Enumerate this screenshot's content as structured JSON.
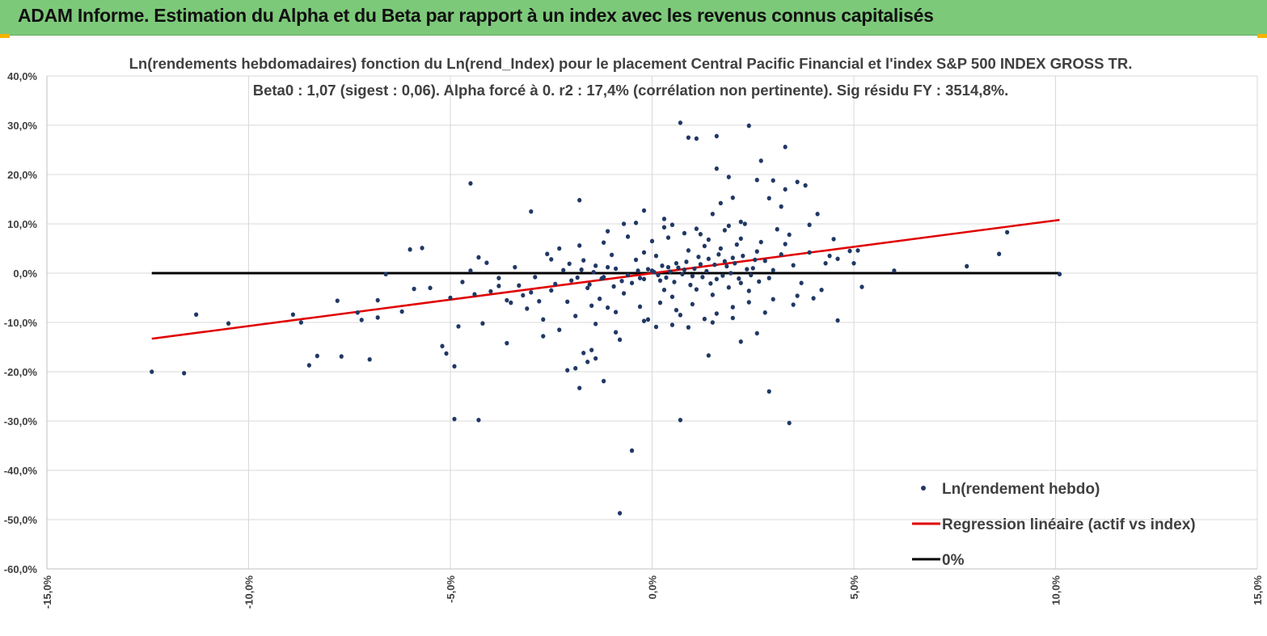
{
  "banner": {
    "title": "ADAM Informe. Estimation du Alpha et du Beta par rapport à un index avec les revenus connus capitalisés"
  },
  "colors": {
    "banner": "#7dc97a",
    "points": "#203864",
    "regression": "#e00000",
    "zero_line": "#000000",
    "grid": "#d9d9d9"
  },
  "chart_data": {
    "type": "scatter",
    "title": "Ln(rendements hebdomadaires) fonction du Ln(rend_Index) pour le placement Central Pacific Financial et l'index S&P 500 INDEX GROSS TR.",
    "subtitle": "Beta0 : 1,07 (sigest : 0,06). Alpha forcé à 0. r2 : 17,4% (corrélation non pertinente). Sig résidu FY : 3514,8%.",
    "xlabel": "",
    "ylabel": "",
    "xlim": [
      -15,
      15
    ],
    "ylim": [
      -60,
      40
    ],
    "x_ticks": [
      -15,
      -10,
      -5,
      0,
      5,
      10,
      15
    ],
    "y_ticks": [
      40,
      30,
      20,
      10,
      0,
      -10,
      -20,
      -30,
      -40,
      -50,
      -60
    ],
    "x_tick_labels": [
      "-15,0%",
      "-10,0%",
      "-5,0%",
      "0,0%",
      "5,0%",
      "10,0%",
      "15,0%"
    ],
    "y_tick_labels": [
      "40,0%",
      "30,0%",
      "20,0%",
      "10,0%",
      "0,0%",
      "-10,0%",
      "-20,0%",
      "-30,0%",
      "-40,0%",
      "-50,0%",
      "-60,0%"
    ],
    "grid": true,
    "legend_position": "bottom-right",
    "series": [
      {
        "name": "Ln(rendement hebdo)",
        "kind": "scatter",
        "points": [
          [
            -12.4,
            -20.0
          ],
          [
            -11.6,
            -20.3
          ],
          [
            -11.3,
            -8.4
          ],
          [
            -10.5,
            -10.2
          ],
          [
            -8.9,
            -8.4
          ],
          [
            -8.7,
            -10.0
          ],
          [
            -8.5,
            -18.7
          ],
          [
            -8.3,
            -16.8
          ],
          [
            -7.8,
            -5.6
          ],
          [
            -7.7,
            -16.9
          ],
          [
            -7.3,
            -8.0
          ],
          [
            -7.2,
            -9.5
          ],
          [
            -7.0,
            -17.5
          ],
          [
            -6.8,
            -5.5
          ],
          [
            -6.8,
            -9.0
          ],
          [
            -6.6,
            -0.2
          ],
          [
            -6.2,
            -7.8
          ],
          [
            -6.0,
            4.8
          ],
          [
            -5.9,
            -3.2
          ],
          [
            -5.7,
            5.1
          ],
          [
            -5.5,
            -3.0
          ],
          [
            -5.2,
            -14.8
          ],
          [
            -5.1,
            -16.3
          ],
          [
            -5.0,
            -5.0
          ],
          [
            -4.9,
            -18.9
          ],
          [
            -4.9,
            -29.6
          ],
          [
            -4.8,
            -10.8
          ],
          [
            -4.7,
            -1.8
          ],
          [
            -4.5,
            18.2
          ],
          [
            -4.5,
            0.5
          ],
          [
            -4.3,
            -29.8
          ],
          [
            -4.3,
            3.2
          ],
          [
            -4.2,
            -10.2
          ],
          [
            -4.0,
            -3.7
          ],
          [
            -3.8,
            -1.0
          ],
          [
            -3.6,
            -14.2
          ],
          [
            -3.5,
            -6.0
          ],
          [
            -3.3,
            -2.5
          ],
          [
            -3.0,
            12.5
          ],
          [
            -3.2,
            -4.5
          ],
          [
            -2.8,
            -5.7
          ],
          [
            -2.7,
            -12.8
          ],
          [
            -2.5,
            -3.5
          ],
          [
            -2.3,
            5.0
          ],
          [
            -2.1,
            -19.7
          ],
          [
            -1.8,
            14.8
          ],
          [
            -1.9,
            -19.3
          ],
          [
            -1.8,
            -23.3
          ],
          [
            -1.7,
            -16.2
          ],
          [
            -1.6,
            -18.0
          ],
          [
            -1.5,
            -15.6
          ],
          [
            -1.4,
            -17.3
          ],
          [
            -1.2,
            -21.9
          ],
          [
            -1.1,
            -7.0
          ],
          [
            -0.8,
            -13.5
          ],
          [
            -0.7,
            10.0
          ],
          [
            -0.5,
            -36.0
          ],
          [
            -0.8,
            -48.7
          ],
          [
            -0.2,
            12.7
          ],
          [
            -0.1,
            -9.4
          ],
          [
            0.3,
            9.3
          ],
          [
            0.7,
            30.5
          ],
          [
            0.9,
            27.5
          ],
          [
            1.1,
            27.3
          ],
          [
            1.4,
            -16.7
          ],
          [
            1.6,
            21.2
          ],
          [
            1.7,
            14.2
          ],
          [
            1.5,
            12.0
          ],
          [
            1.6,
            27.8
          ],
          [
            1.9,
            19.5
          ],
          [
            2.0,
            15.3
          ],
          [
            2.3,
            10.0
          ],
          [
            2.6,
            18.9
          ],
          [
            2.9,
            15.2
          ],
          [
            2.2,
            -13.9
          ],
          [
            2.7,
            22.8
          ],
          [
            2.9,
            -24.0
          ],
          [
            3.0,
            18.8
          ],
          [
            3.2,
            13.5
          ],
          [
            3.3,
            17.0
          ],
          [
            3.3,
            25.6
          ],
          [
            3.4,
            -30.4
          ],
          [
            3.6,
            18.5
          ],
          [
            3.7,
            -2.0
          ],
          [
            3.8,
            17.8
          ],
          [
            3.9,
            9.8
          ],
          [
            4.1,
            12.0
          ],
          [
            4.3,
            2.0
          ],
          [
            4.5,
            6.9
          ],
          [
            4.6,
            -9.6
          ],
          [
            4.6,
            2.9
          ],
          [
            4.9,
            4.5
          ],
          [
            5.0,
            2.0
          ],
          [
            5.1,
            4.6
          ],
          [
            5.2,
            -2.8
          ],
          [
            6.0,
            0.5
          ],
          [
            7.8,
            1.4
          ],
          [
            8.6,
            3.9
          ],
          [
            8.8,
            8.3
          ],
          [
            10.1,
            -0.2
          ],
          [
            2.4,
            29.9
          ],
          [
            0.7,
            -29.8
          ],
          [
            2.6,
            -12.2
          ],
          [
            0.9,
            -11.0
          ],
          [
            0.5,
            -10.5
          ],
          [
            -0.3,
            -1.0
          ],
          [
            0.0,
            0.5
          ],
          [
            0.2,
            -1.5
          ],
          [
            0.4,
            1.2
          ],
          [
            0.6,
            2.0
          ],
          [
            -0.5,
            -2.0
          ],
          [
            0.8,
            0.7
          ],
          [
            1.0,
            -0.6
          ],
          [
            1.2,
            1.8
          ],
          [
            -0.9,
            0.9
          ],
          [
            1.4,
            2.9
          ],
          [
            -1.2,
            -0.8
          ],
          [
            1.6,
            -1.2
          ],
          [
            1.8,
            2.4
          ],
          [
            -1.4,
            1.5
          ],
          [
            2.0,
            3.1
          ],
          [
            2.2,
            -2.0
          ],
          [
            -1.6,
            -3.0
          ],
          [
            2.5,
            1.0
          ],
          [
            2.8,
            2.5
          ],
          [
            -2.0,
            -1.5
          ],
          [
            3.0,
            0.6
          ],
          [
            3.2,
            3.8
          ],
          [
            -2.4,
            -2.2
          ],
          [
            3.5,
            1.6
          ],
          [
            0.1,
            3.5
          ],
          [
            0.3,
            -3.4
          ],
          [
            -0.2,
            4.2
          ],
          [
            0.5,
            -4.8
          ],
          [
            -0.4,
            2.7
          ],
          [
            0.9,
            4.6
          ],
          [
            -0.7,
            -4.1
          ],
          [
            1.1,
            -3.3
          ],
          [
            1.3,
            5.5
          ],
          [
            -1.0,
            3.7
          ],
          [
            1.5,
            -4.4
          ],
          [
            1.7,
            5.0
          ],
          [
            -1.3,
            -5.2
          ],
          [
            1.9,
            -2.9
          ],
          [
            2.1,
            5.8
          ],
          [
            -1.7,
            2.6
          ],
          [
            2.4,
            -3.6
          ],
          [
            2.6,
            4.4
          ],
          [
            -2.2,
            0.6
          ],
          [
            2.9,
            -1.0
          ],
          [
            0.05,
            0.2
          ],
          [
            0.15,
            -0.4
          ],
          [
            -0.1,
            0.8
          ],
          [
            0.25,
            1.5
          ],
          [
            -0.2,
            -1.2
          ],
          [
            0.35,
            -0.9
          ],
          [
            0.45,
            0.3
          ],
          [
            -0.35,
            0.5
          ],
          [
            0.55,
            -1.8
          ],
          [
            0.65,
            1.1
          ],
          [
            -0.6,
            -0.4
          ],
          [
            0.75,
            -0.2
          ],
          [
            0.85,
            2.3
          ],
          [
            -0.75,
            -1.6
          ],
          [
            0.95,
            -2.4
          ],
          [
            1.05,
            0.9
          ],
          [
            -0.95,
            -2.7
          ],
          [
            1.15,
            3.3
          ],
          [
            1.25,
            -0.8
          ],
          [
            -1.1,
            1.2
          ],
          [
            1.35,
            0.4
          ],
          [
            1.45,
            -2.1
          ],
          [
            -1.25,
            -1.1
          ],
          [
            1.55,
            1.7
          ],
          [
            1.65,
            3.8
          ],
          [
            -1.45,
            0.2
          ],
          [
            1.75,
            -0.5
          ],
          [
            1.85,
            1.4
          ],
          [
            -1.55,
            -2.3
          ],
          [
            1.95,
            0.0
          ],
          [
            2.05,
            2.0
          ],
          [
            -1.75,
            0.7
          ],
          [
            2.15,
            -1.1
          ],
          [
            2.25,
            3.5
          ],
          [
            -1.85,
            -0.9
          ],
          [
            2.35,
            0.8
          ],
          [
            2.45,
            -0.4
          ],
          [
            -2.05,
            1.9
          ],
          [
            2.55,
            2.7
          ],
          [
            2.65,
            -1.7
          ],
          [
            0.0,
            6.5
          ],
          [
            0.2,
            -6.0
          ],
          [
            0.4,
            7.2
          ],
          [
            -0.3,
            -6.8
          ],
          [
            0.6,
            -7.5
          ],
          [
            0.8,
            8.1
          ],
          [
            -0.6,
            7.4
          ],
          [
            1.0,
            -6.3
          ],
          [
            1.2,
            7.9
          ],
          [
            -0.9,
            -7.9
          ],
          [
            1.4,
            6.8
          ],
          [
            1.6,
            -8.2
          ],
          [
            -1.2,
            6.2
          ],
          [
            1.8,
            8.7
          ],
          [
            2.0,
            -6.9
          ],
          [
            -1.5,
            -6.6
          ],
          [
            2.2,
            7.0
          ],
          [
            2.4,
            -5.9
          ],
          [
            -1.8,
            5.6
          ],
          [
            2.7,
            6.3
          ],
          [
            3.0,
            -5.3
          ],
          [
            3.3,
            5.9
          ],
          [
            -2.1,
            -5.8
          ],
          [
            3.6,
            -4.6
          ],
          [
            3.9,
            4.2
          ],
          [
            -2.6,
            3.9
          ],
          [
            4.2,
            -3.4
          ],
          [
            4.4,
            3.5
          ],
          [
            -3.0,
            -3.9
          ],
          [
            -3.4,
            1.2
          ],
          [
            -3.8,
            -2.6
          ],
          [
            -4.1,
            2.1
          ],
          [
            -2.9,
            -0.8
          ],
          [
            -2.5,
            2.8
          ],
          [
            -3.6,
            -5.5
          ],
          [
            -4.4,
            -4.3
          ],
          [
            -3.1,
            -7.2
          ],
          [
            -2.7,
            -9.4
          ],
          [
            -2.3,
            -11.5
          ],
          [
            -1.9,
            -8.7
          ],
          [
            0.3,
            11.0
          ],
          [
            0.5,
            9.8
          ],
          [
            -0.4,
            10.2
          ],
          [
            1.1,
            9.0
          ],
          [
            1.3,
            -9.3
          ],
          [
            -0.2,
            -9.7
          ],
          [
            0.7,
            -8.5
          ],
          [
            1.9,
            9.6
          ],
          [
            2.2,
            10.4
          ],
          [
            -1.1,
            8.5
          ],
          [
            3.1,
            8.9
          ],
          [
            3.4,
            7.8
          ],
          [
            -1.4,
            -10.3
          ],
          [
            -0.9,
            -12.0
          ],
          [
            0.1,
            -10.9
          ],
          [
            1.5,
            -10.0
          ],
          [
            2.0,
            -9.1
          ],
          [
            2.8,
            -8.0
          ],
          [
            3.5,
            -6.4
          ],
          [
            4.0,
            -5.1
          ]
        ]
      },
      {
        "name": "Regression linéaire (actif vs index)",
        "kind": "line",
        "points": [
          [
            -12.4,
            -13.3
          ],
          [
            10.1,
            10.8
          ]
        ]
      },
      {
        "name": "0%",
        "kind": "line",
        "points": [
          [
            -12.4,
            0
          ],
          [
            10.1,
            0
          ]
        ]
      }
    ]
  }
}
